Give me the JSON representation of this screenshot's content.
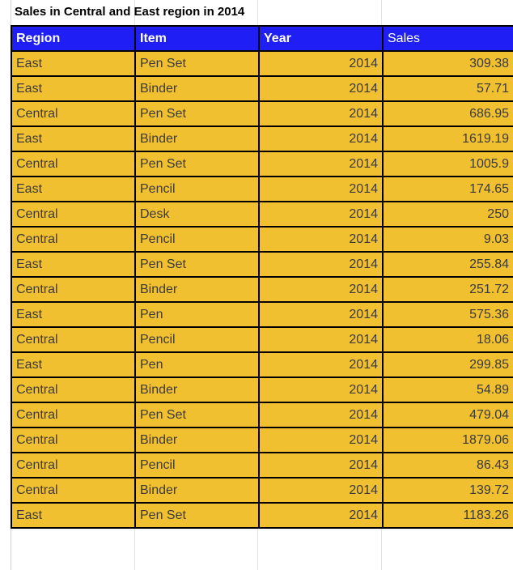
{
  "title": "Sales in Central and East region in 2014",
  "colors": {
    "header_bg": "#1f1ff5",
    "header_text": "#ffffff",
    "cell_bg": "#f0c030",
    "border": "#000000"
  },
  "headers": {
    "region": "Region",
    "item": "Item",
    "year": "Year",
    "sales": "Sales"
  },
  "rows": [
    {
      "region": "East",
      "item": "Pen Set",
      "year": "2014",
      "sales": "309.38"
    },
    {
      "region": "East",
      "item": "Binder",
      "year": "2014",
      "sales": "57.71"
    },
    {
      "region": "Central",
      "item": "Pen Set",
      "year": "2014",
      "sales": "686.95"
    },
    {
      "region": "East",
      "item": "Binder",
      "year": "2014",
      "sales": "1619.19"
    },
    {
      "region": "Central",
      "item": "Pen Set",
      "year": "2014",
      "sales": "1005.9"
    },
    {
      "region": "East",
      "item": "Pencil",
      "year": "2014",
      "sales": "174.65"
    },
    {
      "region": "Central",
      "item": "Desk",
      "year": "2014",
      "sales": "250"
    },
    {
      "region": "Central",
      "item": "Pencil",
      "year": "2014",
      "sales": "9.03"
    },
    {
      "region": "East",
      "item": "Pen Set",
      "year": "2014",
      "sales": "255.84"
    },
    {
      "region": "Central",
      "item": "Binder",
      "year": "2014",
      "sales": "251.72"
    },
    {
      "region": "East",
      "item": "Pen",
      "year": "2014",
      "sales": "575.36"
    },
    {
      "region": "Central",
      "item": "Pencil",
      "year": "2014",
      "sales": "18.06"
    },
    {
      "region": "East",
      "item": "Pen",
      "year": "2014",
      "sales": "299.85"
    },
    {
      "region": "Central",
      "item": "Binder",
      "year": "2014",
      "sales": "54.89"
    },
    {
      "region": "Central",
      "item": "Pen Set",
      "year": "2014",
      "sales": "479.04"
    },
    {
      "region": "Central",
      "item": "Binder",
      "year": "2014",
      "sales": "1879.06"
    },
    {
      "region": "Central",
      "item": "Pencil",
      "year": "2014",
      "sales": "86.43"
    },
    {
      "region": "Central",
      "item": "Binder",
      "year": "2014",
      "sales": "139.72"
    },
    {
      "region": "East",
      "item": "Pen Set",
      "year": "2014",
      "sales": "1183.26"
    }
  ]
}
